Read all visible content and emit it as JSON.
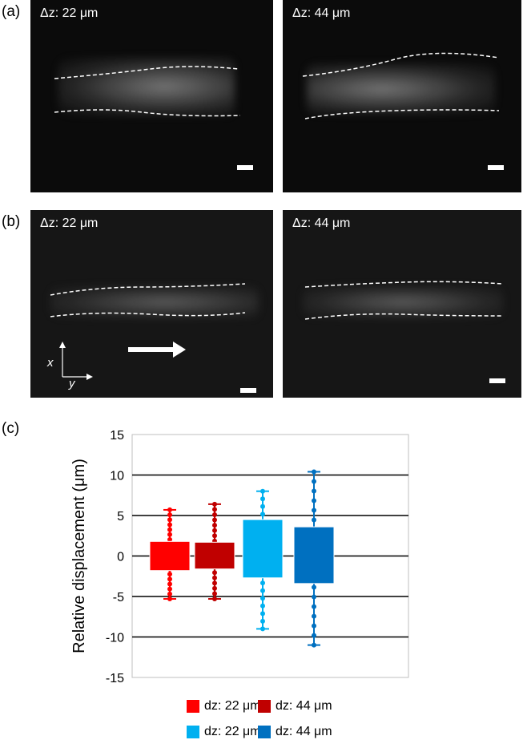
{
  "panels": {
    "a": {
      "label": "(a)",
      "images": [
        {
          "label": "Δz: 22 μm"
        },
        {
          "label": "Δz: 44 μm"
        }
      ]
    },
    "b": {
      "label": "(b)",
      "images": [
        {
          "label": "Δz: 22 μm"
        },
        {
          "label": "Δz: 44 μm"
        }
      ],
      "axis_x": "x",
      "axis_y": "y"
    },
    "c": {
      "label": "(c)"
    }
  },
  "chart_data": {
    "type": "box",
    "ylabel": "Relative  displacement (μm)",
    "ylim": [
      -15,
      15
    ],
    "yticks": [
      -15,
      -10,
      -5,
      0,
      5,
      10,
      15
    ],
    "grid": true,
    "legend_position": "bottom",
    "series": [
      {
        "name": "dz: 22 μm",
        "color": "#ff0000",
        "q1": -1.8,
        "q3": 1.8,
        "min": -5.3,
        "max": 5.7
      },
      {
        "name": "dz: 44 μm",
        "color": "#c00000",
        "q1": -1.6,
        "q3": 1.7,
        "min": -5.3,
        "max": 6.4
      },
      {
        "name": "dz: 22 μm",
        "color": "#00b0f0",
        "q1": -2.7,
        "q3": 4.5,
        "min": -9.0,
        "max": 8.0
      },
      {
        "name": "dz: 44 μm",
        "color": "#0070c0",
        "q1": -3.4,
        "q3": 3.6,
        "min": -11.0,
        "max": 10.4
      }
    ]
  }
}
